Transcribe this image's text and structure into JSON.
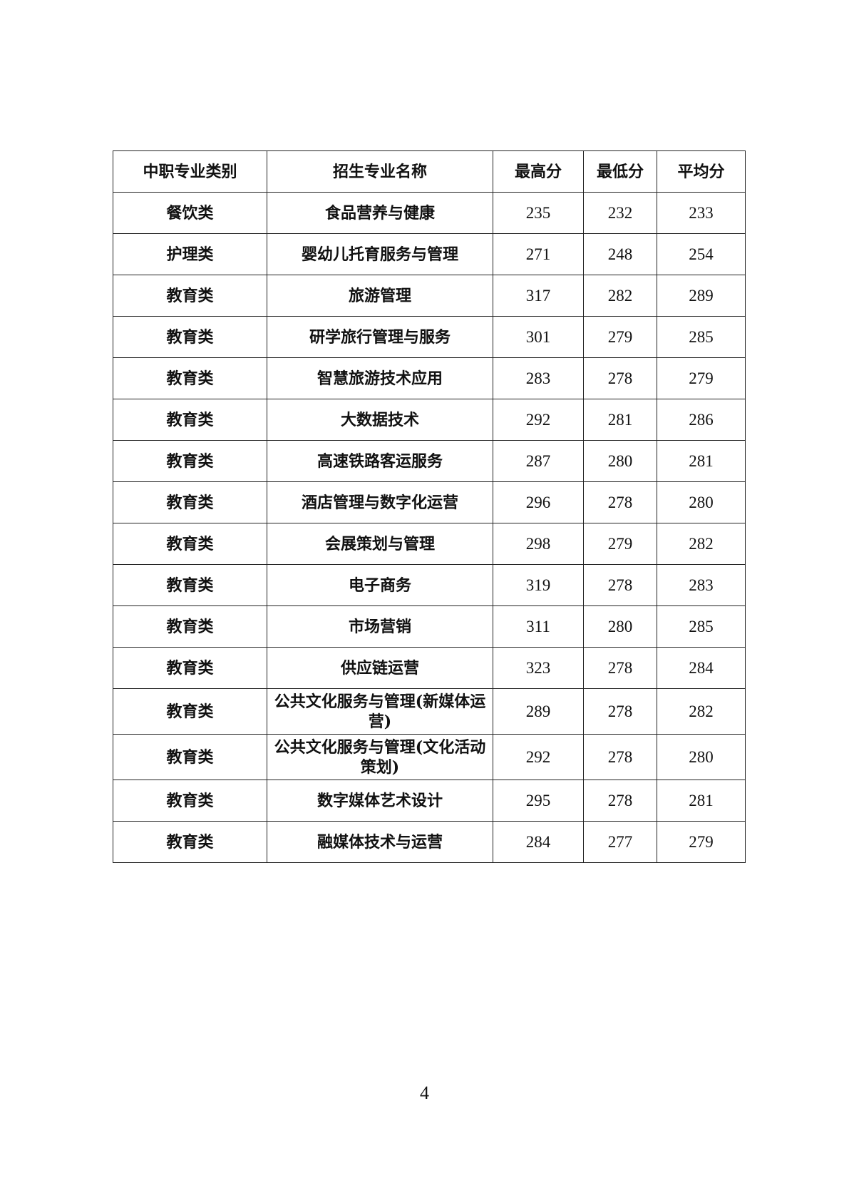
{
  "table": {
    "headers": [
      "中职专业类别",
      "招生专业名称",
      "最高分",
      "最低分",
      "平均分"
    ],
    "rows": [
      [
        "餐饮类",
        "食品营养与健康",
        "235",
        "232",
        "233"
      ],
      [
        "护理类",
        "婴幼儿托育服务与管理",
        "271",
        "248",
        "254"
      ],
      [
        "教育类",
        "旅游管理",
        "317",
        "282",
        "289"
      ],
      [
        "教育类",
        "研学旅行管理与服务",
        "301",
        "279",
        "285"
      ],
      [
        "教育类",
        "智慧旅游技术应用",
        "283",
        "278",
        "279"
      ],
      [
        "教育类",
        "大数据技术",
        "292",
        "281",
        "286"
      ],
      [
        "教育类",
        "高速铁路客运服务",
        "287",
        "280",
        "281"
      ],
      [
        "教育类",
        "酒店管理与数字化运营",
        "296",
        "278",
        "280"
      ],
      [
        "教育类",
        "会展策划与管理",
        "298",
        "279",
        "282"
      ],
      [
        "教育类",
        "电子商务",
        "319",
        "278",
        "283"
      ],
      [
        "教育类",
        "市场营销",
        "311",
        "280",
        "285"
      ],
      [
        "教育类",
        "供应链运营",
        "323",
        "278",
        "284"
      ],
      [
        "教育类",
        "公共文化服务与管理(新媒体运营)",
        "289",
        "278",
        "282"
      ],
      [
        "教育类",
        "公共文化服务与管理(文化活动策划)",
        "292",
        "278",
        "280"
      ],
      [
        "教育类",
        "数字媒体艺术设计",
        "295",
        "278",
        "281"
      ],
      [
        "教育类",
        "融媒体技术与运营",
        "284",
        "277",
        "279"
      ]
    ]
  },
  "page_number": "4"
}
